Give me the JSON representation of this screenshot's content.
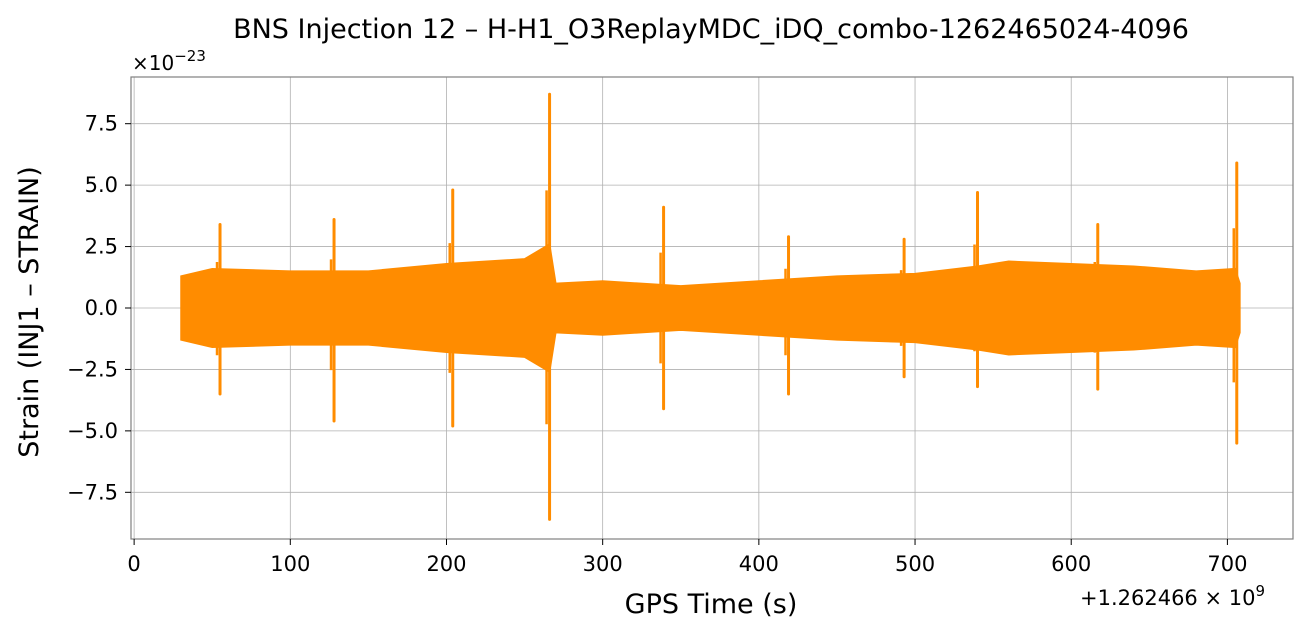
{
  "chart_data": {
    "type": "line",
    "title": "BNS Injection 12 – H-H1_O3ReplayMDC_iDQ_combo-1262465024-4096",
    "xlabel": "GPS Time (s)",
    "ylabel": "Strain (INJ1 – STRAIN)",
    "x_offset_label": "+1.262466 × 10",
    "x_offset_exponent": "9",
    "y_scale_label": "×10",
    "y_scale_exponent": "−23",
    "xlim": [
      -2,
      742
    ],
    "ylim": [
      -9.4,
      9.4
    ],
    "xticks": [
      0,
      100,
      200,
      300,
      400,
      500,
      600,
      700
    ],
    "xtick_labels": [
      "0",
      "100",
      "200",
      "300",
      "400",
      "500",
      "600",
      "700"
    ],
    "yticks": [
      -7.5,
      -5.0,
      -2.5,
      0.0,
      2.5,
      5.0,
      7.5
    ],
    "ytick_labels": [
      "−7.5",
      "−5.0",
      "−2.5",
      "0.0",
      "2.5",
      "5.0",
      "7.5"
    ],
    "grid": true,
    "series": [
      {
        "color": "#ff8c00",
        "x_range": [
          30,
          708
        ],
        "envelope": {
          "x": [
            30,
            50,
            100,
            150,
            200,
            250,
            266,
            270,
            300,
            350,
            400,
            450,
            500,
            540,
            560,
            600,
            640,
            680,
            705,
            708
          ],
          "upper": [
            1.3,
            1.6,
            1.5,
            1.5,
            1.8,
            2.0,
            2.6,
            1.0,
            1.1,
            0.9,
            1.1,
            1.3,
            1.4,
            1.7,
            1.9,
            1.8,
            1.7,
            1.5,
            1.6,
            1.0
          ],
          "lower": [
            -1.3,
            -1.6,
            -1.5,
            -1.5,
            -1.8,
            -2.0,
            -2.6,
            -1.0,
            -1.1,
            -0.9,
            -1.1,
            -1.3,
            -1.4,
            -1.7,
            -1.9,
            -1.8,
            -1.7,
            -1.5,
            -1.6,
            -1.0
          ]
        },
        "spikes": [
          {
            "x": 55,
            "max": 3.4,
            "min": -3.5
          },
          {
            "x": 128,
            "max": 3.6,
            "min": -4.6
          },
          {
            "x": 204,
            "max": 4.8,
            "min": -4.8
          },
          {
            "x": 266,
            "max": 8.7,
            "min": -8.6
          },
          {
            "x": 339,
            "max": 4.1,
            "min": -4.1
          },
          {
            "x": 419,
            "max": 2.9,
            "min": -3.5
          },
          {
            "x": 493,
            "max": 2.8,
            "min": -2.8
          },
          {
            "x": 540,
            "max": 4.7,
            "min": -3.2
          },
          {
            "x": 617,
            "max": 3.4,
            "min": -3.3
          },
          {
            "x": 706,
            "max": 5.9,
            "min": -5.5
          }
        ]
      }
    ]
  }
}
